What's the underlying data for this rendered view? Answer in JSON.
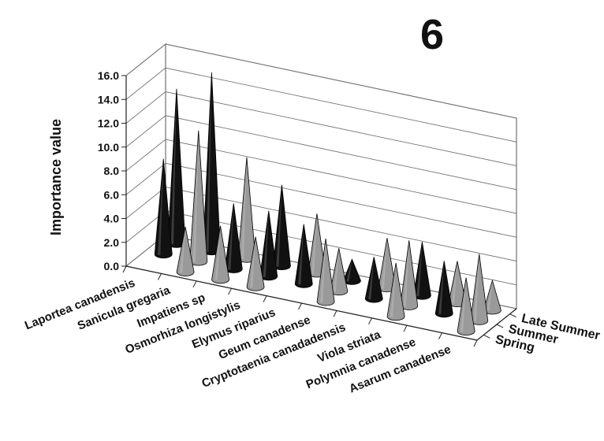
{
  "panel_number": "6",
  "colors": {
    "black": "#111111",
    "gray": "#9a9a9a",
    "axis": "#555555"
  },
  "chart_data": {
    "type": "bar",
    "style": "3d-cone",
    "ylabel": "Importance value",
    "ylim": [
      0,
      16
    ],
    "ytick_step": 2,
    "yticks": [
      "0.0",
      "2.0",
      "4.0",
      "6.0",
      "8.0",
      "10.0",
      "12.0",
      "14.0",
      "16.0"
    ],
    "grid": true,
    "categories": [
      "Laportea canadensis",
      "Sanicula gregaria",
      "Impatiens sp",
      "Osmorhiza longistylis",
      "Elymus riparius",
      "Geum canadense",
      "Cryptotaenia canadadensis",
      "Viola striata",
      "Polymnia canadense",
      "Asarum canadense"
    ],
    "series": [
      {
        "name": "Spring",
        "color_key": "gray",
        "values": [
          0.0,
          3.8,
          4.5,
          4.2,
          0.0,
          5.3,
          0.0,
          4.5,
          0.0,
          4.5
        ]
      },
      {
        "name": "Summer",
        "color_key": "mixed",
        "colors": [
          "black",
          "gray",
          "black",
          "black",
          "black",
          "gray",
          "black",
          "gray",
          "black",
          "gray"
        ],
        "values": [
          8.0,
          11.0,
          5.5,
          5.5,
          5.0,
          3.6,
          3.5,
          5.5,
          4.4,
          5.6
        ]
      },
      {
        "name": "Late Summer",
        "color_key": "mixed",
        "colors": [
          "black",
          "black",
          "gray",
          "black",
          "gray",
          "black",
          "gray",
          "black",
          "gray",
          "gray"
        ],
        "values": [
          13.0,
          15.0,
          8.5,
          6.8,
          5.0,
          1.8,
          4.2,
          4.5,
          3.5,
          2.5
        ]
      }
    ]
  }
}
